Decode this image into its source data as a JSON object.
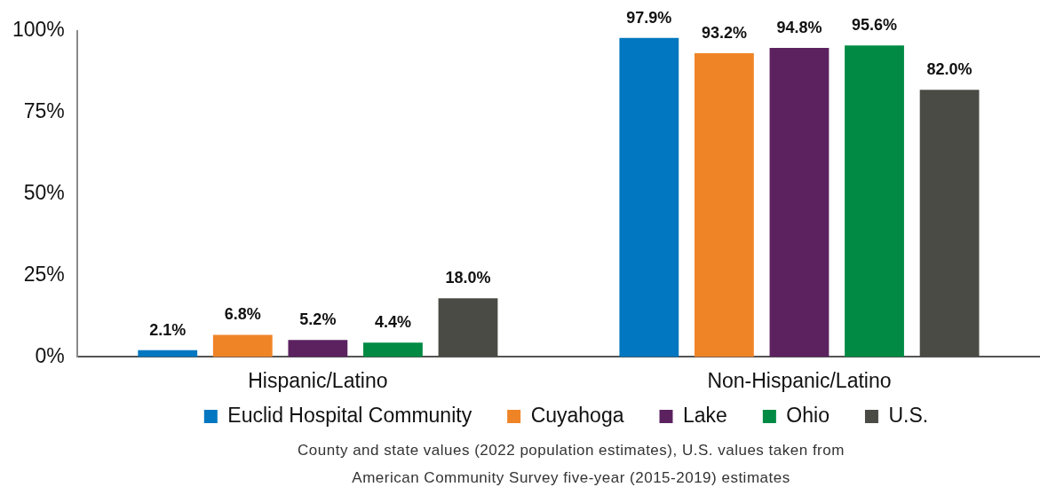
{
  "chart_data": {
    "type": "bar",
    "categories": [
      "Hispanic/Latino",
      "Non-Hispanic/Latino"
    ],
    "series": [
      {
        "name": "Euclid Hospital Community",
        "color": "#0077c0",
        "values": [
          2.1,
          97.9
        ],
        "value_labels": [
          "2.1%",
          "97.9%"
        ]
      },
      {
        "name": "Cuyahoga",
        "color": "#ef8427",
        "values": [
          6.8,
          93.2
        ],
        "value_labels": [
          "6.8%",
          "93.2%"
        ]
      },
      {
        "name": "Lake",
        "color": "#5c2260",
        "values": [
          5.2,
          94.8
        ],
        "value_labels": [
          "5.2%",
          "94.8%"
        ]
      },
      {
        "name": "Ohio",
        "color": "#008a44",
        "values": [
          4.4,
          95.6
        ],
        "value_labels": [
          "4.4%",
          "95.6%"
        ]
      },
      {
        "name": "U.S.",
        "color": "#4b4b46",
        "values": [
          18.0,
          82.0
        ],
        "value_labels": [
          "18.0%",
          "82.0%"
        ]
      }
    ],
    "ylim": [
      0,
      100
    ],
    "yticks": [
      {
        "value": 0,
        "label": "0%"
      },
      {
        "value": 25,
        "label": "25%"
      },
      {
        "value": 50,
        "label": "50%"
      },
      {
        "value": 75,
        "label": "75%"
      },
      {
        "value": 100,
        "label": "100%"
      }
    ],
    "legend": "bottom",
    "annotations": [
      "County and state values (2022 population estimates), U.S. values taken from",
      "American Community Survey five-year (2015-2019) estimates"
    ]
  }
}
